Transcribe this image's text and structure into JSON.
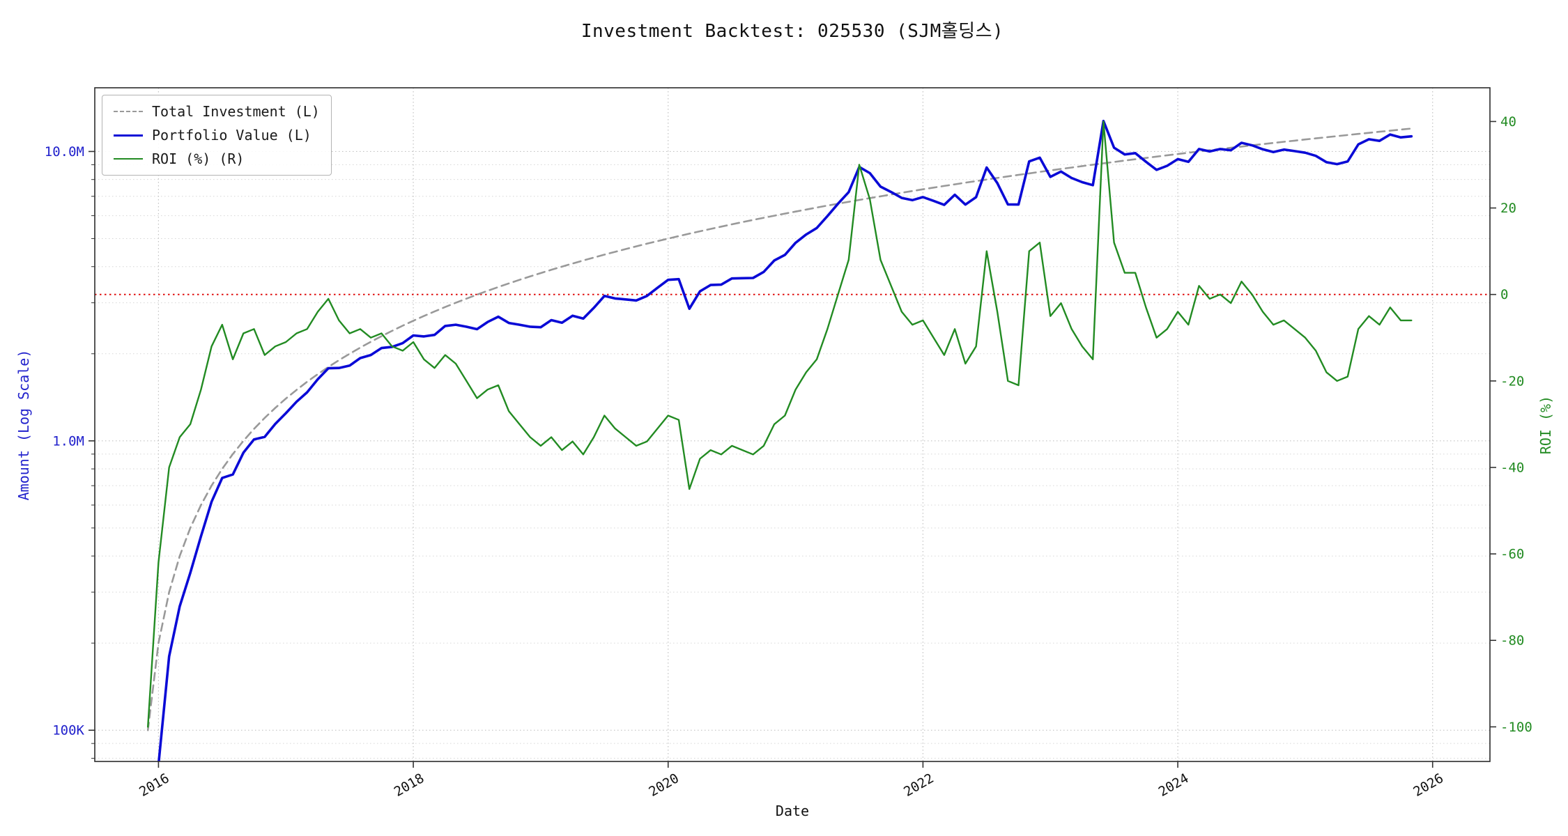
{
  "chart_data": {
    "type": "line",
    "title": "Investment Backtest: 025530 (SJM홀딩스)",
    "x_axis": {
      "label": "Date",
      "start_year": 2015,
      "start_month": 12,
      "frequency": "monthly",
      "tick_years": [
        2016,
        2018,
        2020,
        2022,
        2024,
        2026
      ],
      "range": [
        2015.5,
        2026.45
      ]
    },
    "left_axis": {
      "label": "Amount (Log Scale)",
      "scale": "log",
      "unit": "KRW",
      "color": "#2121cc",
      "ticks": [
        {
          "value": 0.1,
          "label": "100K"
        },
        {
          "value": 1.0,
          "label": "1.0M"
        },
        {
          "value": 10.0,
          "label": "10.0M"
        }
      ],
      "range_millions": [
        0.078,
        16.6
      ]
    },
    "right_axis": {
      "label": "ROI (%)",
      "scale": "linear",
      "color": "#228B22",
      "ticks": [
        40,
        20,
        0,
        -20,
        -40,
        -60,
        -80,
        -100
      ],
      "range": [
        -108,
        47.8
      ]
    },
    "zero_line": {
      "axis": "right",
      "value": 0,
      "color": "#dd0000",
      "style": "dotted"
    },
    "legend": {
      "position": "upper-left"
    },
    "series": [
      {
        "name": "Total Investment (L)",
        "axis": "left",
        "color": "#999999",
        "style": "dashed",
        "width": 2.6,
        "values": [
          0.1,
          0.2,
          0.3,
          0.4,
          0.5,
          0.6,
          0.7,
          0.8,
          0.9,
          1.0,
          1.1,
          1.2,
          1.3,
          1.4,
          1.5,
          1.6,
          1.7,
          1.8,
          1.9,
          2.0,
          2.1,
          2.2,
          2.3,
          2.4,
          2.5,
          2.6,
          2.7,
          2.8,
          2.9,
          3.0,
          3.1,
          3.2,
          3.3,
          3.4,
          3.5,
          3.6,
          3.7,
          3.8,
          3.9,
          4.0,
          4.1,
          4.2,
          4.3,
          4.4,
          4.5,
          4.6,
          4.7,
          4.8,
          4.9,
          5.0,
          5.1,
          5.2,
          5.3,
          5.4,
          5.5,
          5.6,
          5.7,
          5.8,
          5.9,
          6.0,
          6.1,
          6.2,
          6.3,
          6.4,
          6.5,
          6.6,
          6.7,
          6.8,
          6.9,
          7.0,
          7.1,
          7.2,
          7.3,
          7.4,
          7.5,
          7.6,
          7.7,
          7.8,
          7.9,
          8.0,
          8.1,
          8.2,
          8.3,
          8.4,
          8.5,
          8.6,
          8.7,
          8.8,
          8.9,
          9.0,
          9.1,
          9.2,
          9.3,
          9.4,
          9.5,
          9.6,
          9.7,
          9.8,
          9.9,
          10.0,
          10.1,
          10.2,
          10.3,
          10.4,
          10.5,
          10.6,
          10.7,
          10.8,
          10.9,
          11.0,
          11.1,
          11.2,
          11.3,
          11.4,
          11.5,
          11.6,
          11.7,
          11.8,
          11.9,
          12.0
        ]
      },
      {
        "name": "Portfolio Value (L)",
        "axis": "left",
        "color": "#0a0ad6",
        "style": "solid",
        "width": 3.6,
        "values": [
          0.0,
          0.076,
          0.18,
          0.268,
          0.35,
          0.468,
          0.616,
          0.744,
          0.765,
          0.91,
          1.012,
          1.032,
          1.144,
          1.246,
          1.365,
          1.472,
          1.632,
          1.782,
          1.786,
          1.82,
          1.932,
          1.98,
          2.093,
          2.112,
          2.175,
          2.314,
          2.295,
          2.324,
          2.494,
          2.52,
          2.48,
          2.432,
          2.574,
          2.686,
          2.555,
          2.52,
          2.479,
          2.47,
          2.613,
          2.56,
          2.706,
          2.646,
          2.881,
          3.168,
          3.105,
          3.082,
          3.055,
          3.168,
          3.381,
          3.6,
          3.621,
          2.86,
          3.286,
          3.456,
          3.465,
          3.64,
          3.648,
          3.654,
          3.835,
          4.2,
          4.392,
          4.836,
          5.166,
          5.44,
          5.98,
          6.6,
          7.236,
          8.84,
          8.418,
          7.56,
          7.242,
          6.912,
          6.789,
          6.956,
          6.75,
          6.536,
          7.084,
          6.552,
          6.952,
          8.8,
          7.776,
          6.56,
          6.557,
          9.24,
          9.52,
          8.17,
          8.526,
          8.096,
          7.832,
          7.65,
          12.74,
          10.304,
          9.765,
          9.87,
          9.215,
          8.64,
          8.924,
          9.408,
          9.207,
          10.2,
          9.999,
          10.2,
          10.094,
          10.712,
          10.5,
          10.176,
          9.951,
          10.152,
          10.028,
          9.9,
          9.657,
          9.184,
          9.04,
          9.234,
          10.58,
          11.02,
          10.881,
          11.446,
          11.186,
          11.28
        ]
      },
      {
        "name": "ROI (%) (R)",
        "axis": "right",
        "color": "#228B22",
        "style": "solid",
        "width": 2.4,
        "values": [
          -100,
          -62,
          -40,
          -33,
          -30,
          -22,
          -12,
          -7,
          -15,
          -9,
          -8,
          -14,
          -12,
          -11,
          -9,
          -8,
          -4,
          -1,
          -6,
          -9,
          -8,
          -10,
          -9,
          -12,
          -13,
          -11,
          -15,
          -17,
          -14,
          -16,
          -20,
          -24,
          -22,
          -21,
          -27,
          -30,
          -33,
          -35,
          -33,
          -36,
          -34,
          -37,
          -33,
          -28,
          -31,
          -33,
          -35,
          -34,
          -31,
          -28,
          -29,
          -45,
          -38,
          -36,
          -37,
          -35,
          -36,
          -37,
          -35,
          -30,
          -28,
          -22,
          -18,
          -15,
          -8,
          0,
          8,
          30,
          22,
          8,
          2,
          -4,
          -7,
          -6,
          -10,
          -14,
          -8,
          -16,
          -12,
          10,
          -4,
          -20,
          -21,
          10,
          12,
          -5,
          -2,
          -8,
          -12,
          -15,
          40,
          12,
          5,
          5,
          -3,
          -10,
          -8,
          -4,
          -7,
          2,
          -1,
          0,
          -2,
          3,
          0,
          -4,
          -7,
          -6,
          -8,
          -10,
          -13,
          -18,
          -20,
          -19,
          -8,
          -5,
          -7,
          -3,
          -6,
          -6
        ]
      }
    ]
  }
}
